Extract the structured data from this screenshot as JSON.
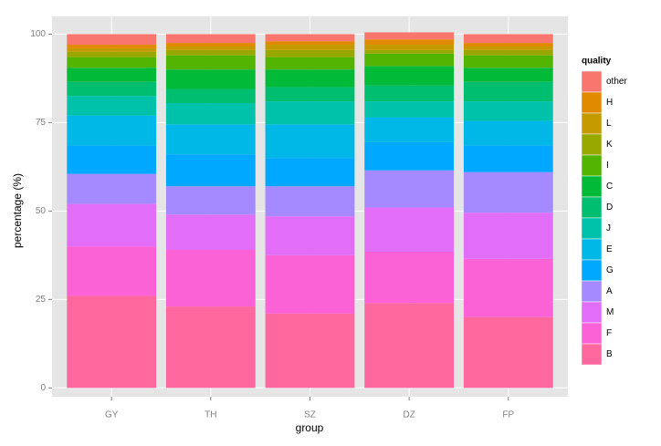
{
  "chart_data": {
    "type": "stacked_bar",
    "x_label": "group",
    "y_label": "percentage (%)",
    "legend_title": "quality",
    "categories": [
      "GY",
      "TH",
      "SZ",
      "DZ",
      "FP"
    ],
    "ylim": [
      -2.5,
      105
    ],
    "yticks": [
      0,
      25,
      50,
      75,
      100
    ],
    "grid": true,
    "legend_position": "right",
    "series": [
      {
        "name": "B",
        "color": "#FF689F",
        "values": [
          26,
          23,
          21,
          24,
          20
        ]
      },
      {
        "name": "F",
        "color": "#FC61D5",
        "values": [
          14,
          16,
          16.5,
          14.5,
          16.5
        ]
      },
      {
        "name": "M",
        "color": "#E26EF7",
        "values": [
          12,
          10,
          11,
          12.5,
          13
        ]
      },
      {
        "name": "A",
        "color": "#A58AFF",
        "values": [
          8.5,
          8,
          8.5,
          10.5,
          11.5
        ]
      },
      {
        "name": "G",
        "color": "#00A9FF",
        "values": [
          8,
          9,
          8,
          8,
          7.5
        ]
      },
      {
        "name": "E",
        "color": "#00B8E7",
        "values": [
          8.5,
          8.5,
          9.5,
          7,
          7
        ]
      },
      {
        "name": "J",
        "color": "#00C1AA",
        "values": [
          5.5,
          6,
          6.5,
          4.5,
          5.5
        ]
      },
      {
        "name": "D",
        "color": "#00BE70",
        "values": [
          4,
          4,
          4,
          4.5,
          5.5
        ]
      },
      {
        "name": "C",
        "color": "#00BA38",
        "values": [
          4,
          5.5,
          5,
          5.5,
          4
        ]
      },
      {
        "name": "I",
        "color": "#53B400",
        "values": [
          3,
          4,
          3.5,
          3.5,
          3.5
        ]
      },
      {
        "name": "K",
        "color": "#99A800",
        "values": [
          1.5,
          1.5,
          2,
          1,
          1.5
        ]
      },
      {
        "name": "L",
        "color": "#C49A00",
        "values": [
          1,
          1,
          1.5,
          1.5,
          1
        ]
      },
      {
        "name": "H",
        "color": "#E18A00",
        "values": [
          1,
          1,
          1,
          1.5,
          1
        ]
      },
      {
        "name": "other",
        "color": "#F8766D",
        "values": [
          3,
          2.5,
          2,
          2,
          2.5
        ]
      }
    ]
  }
}
